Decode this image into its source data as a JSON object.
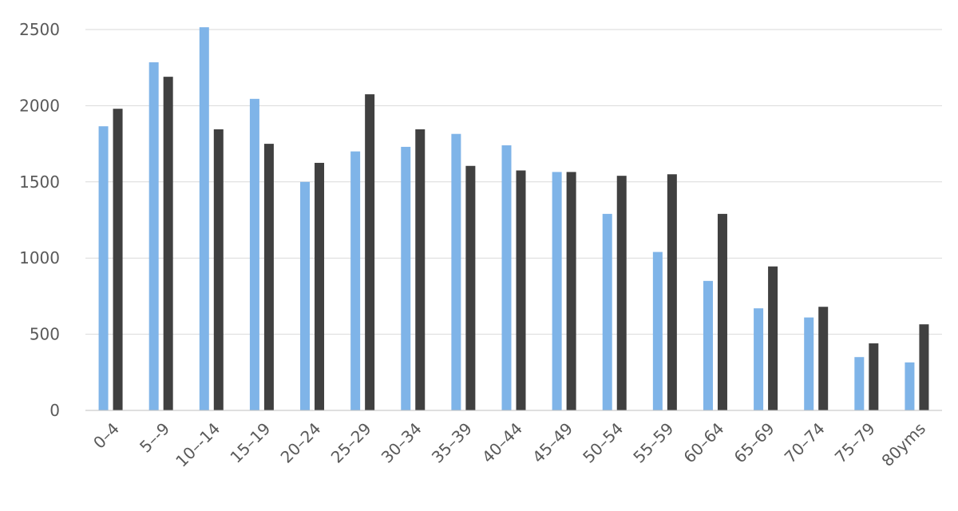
{
  "chart_data": {
    "type": "bar",
    "title": "",
    "xlabel": "",
    "ylabel": "",
    "ylim": [
      0,
      2500
    ],
    "yticks": [
      0,
      500,
      1000,
      1500,
      2000,
      2500
    ],
    "grid": true,
    "legend": "none",
    "categories": [
      "0–4",
      "5–-9",
      "10–-14",
      "15–19",
      "20–24",
      "25–29",
      "30–34",
      "35–39",
      "40–44",
      "45–49",
      "50–54",
      "55–59",
      "60–64",
      "65–69",
      "70–74",
      "75–79",
      "80yms"
    ],
    "series": [
      {
        "color": "#7fb4e8",
        "values": [
          1865,
          2285,
          2515,
          2045,
          1500,
          1700,
          1730,
          1815,
          1740,
          1565,
          1290,
          1040,
          850,
          670,
          610,
          350,
          315
        ]
      },
      {
        "color": "#404040",
        "values": [
          1980,
          2190,
          1845,
          1750,
          1625,
          2075,
          1845,
          1605,
          1575,
          1565,
          1540,
          1550,
          1290,
          945,
          680,
          440,
          565
        ]
      }
    ]
  }
}
